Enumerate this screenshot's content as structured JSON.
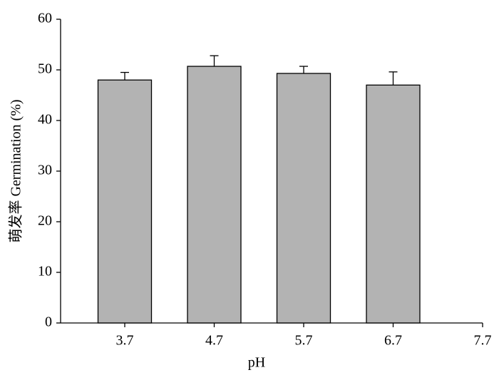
{
  "chart_data": {
    "type": "bar",
    "x_label": "pH",
    "y_label": "萌发率 Germination (%)",
    "categories": [
      "3.7",
      "4.7",
      "5.7",
      "6.7",
      "7.7"
    ],
    "values": [
      48.0,
      50.7,
      49.3,
      47.0,
      null
    ],
    "errors": [
      1.5,
      2.1,
      1.4,
      2.6,
      null
    ],
    "color": "#b3b3b3",
    "ylim": [
      0,
      60
    ],
    "yticks": [
      0,
      10,
      20,
      30,
      40,
      50,
      60
    ]
  }
}
